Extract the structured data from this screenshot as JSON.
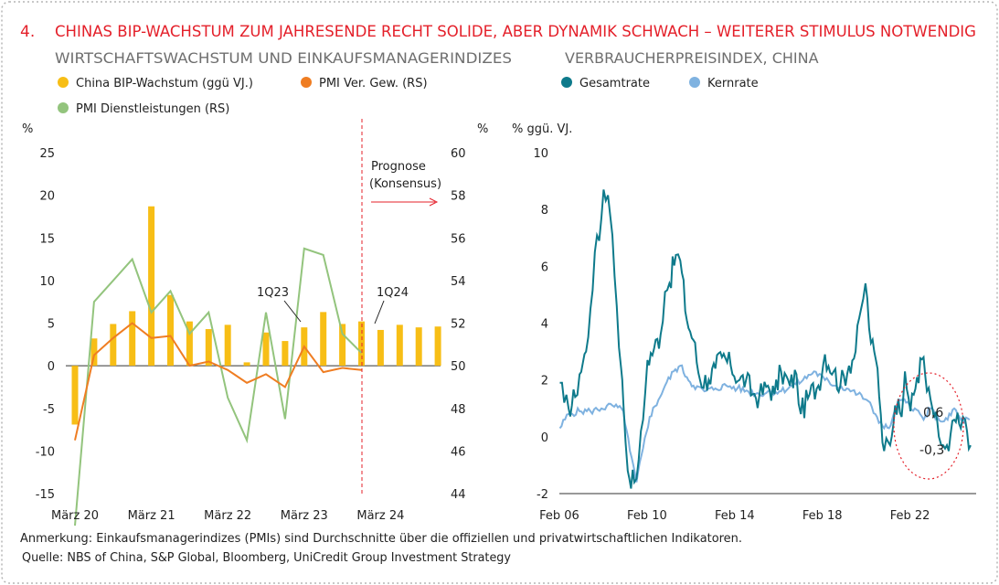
{
  "header": {
    "number": "4.",
    "title": "CHINAS BIP-WACHSTUM ZUM JAHRESENDE RECHT SOLIDE, ABER DYNAMIK SCHWACH – WEITERER STIMULUS NOTWENDIG"
  },
  "colors": {
    "title_red": "#e4202a",
    "gdp_bar": "#f7be16",
    "pmi_mfg": "#ef7d22",
    "pmi_serv": "#93c47d",
    "cpi_headline": "#0e7a8b",
    "cpi_core": "#7fb2e0",
    "highlight": "#e4202a"
  },
  "chart_data": [
    {
      "type": "bar+line",
      "title": "WIRTSCHAFTSWACHSTUM UND EINKAUFSMANAGERINDIZES",
      "ylabel_left": "%",
      "ylim_left": [
        -15,
        25
      ],
      "yticks_left": [
        "25",
        "20",
        "15",
        "10",
        "5",
        "0",
        "-5",
        "-10",
        "-15"
      ],
      "ylim_right": [
        44,
        60
      ],
      "yticks_right": [
        "60",
        "58",
        "56",
        "54",
        "52",
        "50",
        "48",
        "46",
        "44"
      ],
      "xticks": [
        "März 20",
        "März 21",
        "März 22",
        "März 23",
        "März 24"
      ],
      "legend": [
        {
          "name": "China BIP-Wachstum (ggü VJ.)",
          "key": "gdp"
        },
        {
          "name": "PMI Ver. Gew. (RS)",
          "key": "pmi_mfg"
        },
        {
          "name": "PMI Dienstleistungen (RS)",
          "key": "pmi_serv"
        }
      ],
      "quarters": [
        "Q1-20",
        "Q2-20",
        "Q3-20",
        "Q4-20",
        "Q1-21",
        "Q2-21",
        "Q3-21",
        "Q4-21",
        "Q1-22",
        "Q2-22",
        "Q3-22",
        "Q4-22",
        "Q1-23",
        "Q2-23",
        "Q3-23",
        "Q4-23",
        "Q1-24",
        "Q2-24",
        "Q3-24",
        "Q4-24",
        "Q1-25",
        "Q2-25"
      ],
      "gdp": [
        -6.9,
        3.2,
        4.9,
        6.4,
        18.7,
        8.3,
        5.2,
        4.3,
        4.8,
        0.4,
        3.9,
        2.9,
        4.5,
        6.3,
        4.9,
        5.2,
        4.2,
        4.8,
        4.5,
        4.6
      ],
      "gdp_forecast_from_index": 16,
      "pmi_mfg": [
        46.5,
        50.5,
        51.3,
        52.0,
        51.3,
        51.4,
        50.0,
        50.2,
        49.8,
        49.2,
        49.6,
        49.0,
        50.9,
        49.7,
        49.9,
        49.8
      ],
      "pmi_serv": [
        42.5,
        53.0,
        54.0,
        55.0,
        52.5,
        53.5,
        51.5,
        52.5,
        48.5,
        46.5,
        52.5,
        47.5,
        55.5,
        55.2,
        51.5,
        50.6
      ],
      "forecast_label": [
        "Prognose",
        "(Konsensus)"
      ],
      "annotations": [
        "1Q23",
        "1Q24"
      ]
    },
    {
      "type": "line",
      "title": "VERBRAUCHERPREISINDEX, CHINA",
      "ylabel": "% ggü. VJ.",
      "ylim": [
        -2,
        10
      ],
      "yticks": [
        "10",
        "8",
        "6",
        "4",
        "2",
        "0",
        "-2"
      ],
      "xticks": [
        "Feb 06",
        "Feb 10",
        "Feb 14",
        "Feb 18",
        "Feb 22"
      ],
      "xlim": [
        2006.08,
        2025.1
      ],
      "legend": [
        {
          "name": "Gesamtrate",
          "key": "headline"
        },
        {
          "name": "Kernrate",
          "key": "core"
        }
      ],
      "headline_points": [
        [
          2006.1,
          1.9
        ],
        [
          2006.3,
          1.2
        ],
        [
          2006.5,
          1.0
        ],
        [
          2006.8,
          1.4
        ],
        [
          2007.0,
          2.2
        ],
        [
          2007.3,
          3.0
        ],
        [
          2007.5,
          4.5
        ],
        [
          2007.7,
          6.5
        ],
        [
          2007.9,
          6.9
        ],
        [
          2008.1,
          8.7
        ],
        [
          2008.3,
          8.5
        ],
        [
          2008.5,
          7.1
        ],
        [
          2008.7,
          4.6
        ],
        [
          2008.9,
          2.4
        ],
        [
          2009.0,
          1.2
        ],
        [
          2009.2,
          -1.2
        ],
        [
          2009.5,
          -1.6
        ],
        [
          2009.7,
          -0.8
        ],
        [
          2009.9,
          0.6
        ],
        [
          2010.1,
          2.7
        ],
        [
          2010.4,
          3.1
        ],
        [
          2010.7,
          3.6
        ],
        [
          2010.9,
          5.1
        ],
        [
          2011.1,
          5.4
        ],
        [
          2011.4,
          6.4
        ],
        [
          2011.6,
          6.2
        ],
        [
          2011.9,
          4.1
        ],
        [
          2012.2,
          3.4
        ],
        [
          2012.5,
          2.0
        ],
        [
          2012.9,
          2.0
        ],
        [
          2013.2,
          2.4
        ],
        [
          2013.5,
          2.8
        ],
        [
          2013.9,
          2.5
        ],
        [
          2014.3,
          2.0
        ],
        [
          2014.6,
          2.0
        ],
        [
          2014.9,
          1.5
        ],
        [
          2015.2,
          1.4
        ],
        [
          2015.6,
          1.8
        ],
        [
          2015.9,
          1.5
        ],
        [
          2016.2,
          2.3
        ],
        [
          2016.6,
          1.8
        ],
        [
          2016.9,
          2.2
        ],
        [
          2017.1,
          0.8
        ],
        [
          2017.5,
          1.5
        ],
        [
          2017.9,
          1.8
        ],
        [
          2018.2,
          2.9
        ],
        [
          2018.6,
          2.3
        ],
        [
          2018.9,
          1.8
        ],
        [
          2019.3,
          2.5
        ],
        [
          2019.6,
          3.0
        ],
        [
          2019.85,
          4.5
        ],
        [
          2020.05,
          5.4
        ],
        [
          2020.3,
          3.3
        ],
        [
          2020.6,
          2.4
        ],
        [
          2020.9,
          -0.5
        ],
        [
          2021.1,
          -0.2
        ],
        [
          2021.4,
          1.1
        ],
        [
          2021.7,
          0.7
        ],
        [
          2021.85,
          2.3
        ],
        [
          2022.1,
          0.9
        ],
        [
          2022.4,
          2.1
        ],
        [
          2022.7,
          2.8
        ],
        [
          2022.85,
          1.6
        ],
        [
          2023.1,
          1.0
        ],
        [
          2023.4,
          0.0
        ],
        [
          2023.6,
          -0.3
        ],
        [
          2023.85,
          -0.5
        ],
        [
          2024.1,
          0.6
        ],
        [
          2024.4,
          0.3
        ],
        [
          2024.6,
          0.6
        ],
        [
          2024.85,
          -0.3
        ]
      ],
      "core_points": [
        [
          2006.1,
          0.3
        ],
        [
          2006.5,
          0.8
        ],
        [
          2007.0,
          0.9
        ],
        [
          2007.5,
          0.9
        ],
        [
          2008.0,
          1.0
        ],
        [
          2008.5,
          1.1
        ],
        [
          2009.0,
          0.9
        ],
        [
          2009.3,
          -0.5
        ],
        [
          2009.6,
          -1.6
        ],
        [
          2009.9,
          -0.4
        ],
        [
          2010.2,
          0.7
        ],
        [
          2010.6,
          1.3
        ],
        [
          2010.9,
          1.8
        ],
        [
          2011.3,
          2.3
        ],
        [
          2011.6,
          2.5
        ],
        [
          2011.9,
          2.1
        ],
        [
          2012.2,
          1.8
        ],
        [
          2012.7,
          1.6
        ],
        [
          2013.2,
          1.7
        ],
        [
          2013.7,
          1.8
        ],
        [
          2014.2,
          1.7
        ],
        [
          2014.7,
          1.6
        ],
        [
          2015.2,
          1.5
        ],
        [
          2015.7,
          1.6
        ],
        [
          2016.2,
          1.6
        ],
        [
          2016.7,
          1.8
        ],
        [
          2017.2,
          2.0
        ],
        [
          2017.7,
          2.3
        ],
        [
          2018.2,
          2.0
        ],
        [
          2018.7,
          1.8
        ],
        [
          2019.2,
          1.7
        ],
        [
          2019.7,
          1.5
        ],
        [
          2020.1,
          1.3
        ],
        [
          2020.5,
          0.8
        ],
        [
          2020.9,
          0.3
        ],
        [
          2021.2,
          0.4
        ],
        [
          2021.6,
          1.3
        ],
        [
          2021.9,
          1.2
        ],
        [
          2022.3,
          1.0
        ],
        [
          2022.7,
          0.6
        ],
        [
          2023.0,
          1.0
        ],
        [
          2023.4,
          0.6
        ],
        [
          2023.8,
          0.6
        ],
        [
          2024.1,
          1.0
        ],
        [
          2024.4,
          0.6
        ],
        [
          2024.8,
          0.6
        ]
      ],
      "end_labels": [
        "0,6",
        "-0,3"
      ]
    }
  ],
  "footer": {
    "note": "Anmerkung: Einkaufsmanagerindizes (PMIs) sind Durchschnitte über die offiziellen und privatwirtschaftlichen Indikatoren.",
    "source": "Quelle: NBS of China, S&P Global, Bloomberg, UniCredit Group Investment Strategy"
  }
}
